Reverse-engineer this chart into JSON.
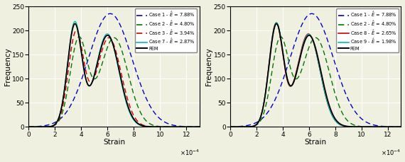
{
  "left_legend": [
    {
      "label": "Case 1 - $\\hat{E}$ = 7.88%",
      "color": "#0000CC",
      "linestyle": "--"
    },
    {
      "label": "Case 2 - $\\hat{E}$ = 4.80%",
      "color": "#006600",
      "linestyle": "--"
    },
    {
      "label": "Case 3 - $\\hat{E}$ = 3.94%",
      "color": "#CC0000",
      "linestyle": "--"
    },
    {
      "label": "Case 7 - $\\hat{E}$ = 2.87%",
      "color": "#00BBBB",
      "linestyle": "-"
    },
    {
      "label": "FEM",
      "color": "#000000",
      "linestyle": "-"
    }
  ],
  "right_legend": [
    {
      "label": "Case 1 - $\\hat{E}$ = 7.88%",
      "color": "#0000CC",
      "linestyle": "--"
    },
    {
      "label": "Case 2 - $\\hat{E}$ = 4.80%",
      "color": "#006600",
      "linestyle": "--"
    },
    {
      "label": "Case 8 - $\\hat{E}$ = 2.65%",
      "color": "#CC0000",
      "linestyle": "-"
    },
    {
      "label": "Case 9 - $\\hat{E}$ = 1.98%",
      "color": "#00BBBB",
      "linestyle": "-"
    },
    {
      "label": "FEM",
      "color": "#000000",
      "linestyle": "-"
    }
  ],
  "xlabel": "Strain",
  "ylabel": "Frequency",
  "xlim": [
    0,
    13
  ],
  "ylim": [
    0,
    250
  ],
  "xticks": [
    0,
    2,
    4,
    6,
    8,
    10,
    12
  ],
  "yticks": [
    0,
    50,
    100,
    150,
    200,
    250
  ],
  "bg_color": "#f0f0e0"
}
